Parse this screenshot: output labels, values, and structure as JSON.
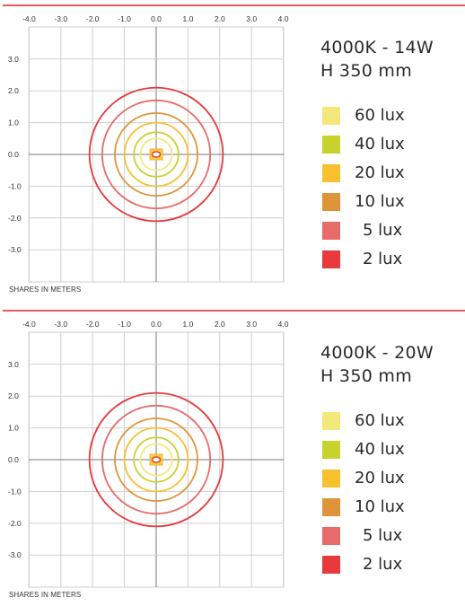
{
  "colors": {
    "lux60": "#f2e97a",
    "lux40": "#c8d22c",
    "lux20": "#f7c02f",
    "lux10": "#e0943a",
    "lux5": "#e86a6a",
    "lux2": "#e8393c",
    "divider": "#e8575b",
    "grid": "#cfcfcf",
    "axis": "#777777"
  },
  "footnote": "SHARES IN METERS",
  "chart_data": [
    {
      "type": "contour",
      "title": "4000K - 14W",
      "subtitle": "H 350 mm",
      "xlabel": "SHARES IN METERS",
      "x_ticks": [
        "-4.0",
        "-3.0",
        "-2.0",
        "-1.0",
        "0.0",
        "1.0",
        "2.0",
        "3.0",
        "4.0"
      ],
      "y_ticks": [
        "3.0",
        "2.0",
        "1.0",
        "0.0",
        "-1.0",
        "-2.0",
        "-3.0"
      ],
      "xlim": [
        -4,
        4
      ],
      "ylim": [
        -4,
        4
      ],
      "grid": true,
      "legend_position": "right",
      "series": [
        {
          "name": "60 lux",
          "lux": 60,
          "radius_m": 0.5,
          "color": "#f2e97a"
        },
        {
          "name": "40 lux",
          "lux": 40,
          "radius_m": 0.7,
          "color": "#c8d22c"
        },
        {
          "name": "20 lux",
          "lux": 20,
          "radius_m": 1.0,
          "color": "#f7c02f"
        },
        {
          "name": "10 lux",
          "lux": 10,
          "radius_m": 1.3,
          "color": "#e0943a"
        },
        {
          "name": "5 lux",
          "lux": 5,
          "radius_m": 1.7,
          "color": "#e86a6a"
        },
        {
          "name": "2 lux",
          "lux": 2,
          "radius_m": 2.1,
          "color": "#e8393c"
        }
      ]
    },
    {
      "type": "contour",
      "title": "4000K - 20W",
      "subtitle": "H 350 mm",
      "xlabel": "SHARES IN METERS",
      "x_ticks": [
        "-4.0",
        "-3.0",
        "-2.0",
        "-1.0",
        "0.0",
        "1.0",
        "2.0",
        "3.0",
        "4.0"
      ],
      "y_ticks": [
        "3.0",
        "2.0",
        "1.0",
        "0.0",
        "-1.0",
        "-2.0",
        "-3.0"
      ],
      "xlim": [
        -4,
        4
      ],
      "ylim": [
        -4,
        4
      ],
      "grid": true,
      "legend_position": "right",
      "series": [
        {
          "name": "60 lux",
          "lux": 60,
          "radius_m": 0.5,
          "color": "#f2e97a"
        },
        {
          "name": "40 lux",
          "lux": 40,
          "radius_m": 0.7,
          "color": "#c8d22c"
        },
        {
          "name": "20 lux",
          "lux": 20,
          "radius_m": 1.0,
          "color": "#f7c02f"
        },
        {
          "name": "10 lux",
          "lux": 10,
          "radius_m": 1.3,
          "color": "#e0943a"
        },
        {
          "name": "5 lux",
          "lux": 5,
          "radius_m": 1.7,
          "color": "#e86a6a"
        },
        {
          "name": "2 lux",
          "lux": 2,
          "radius_m": 2.1,
          "color": "#e8393c"
        }
      ]
    }
  ]
}
